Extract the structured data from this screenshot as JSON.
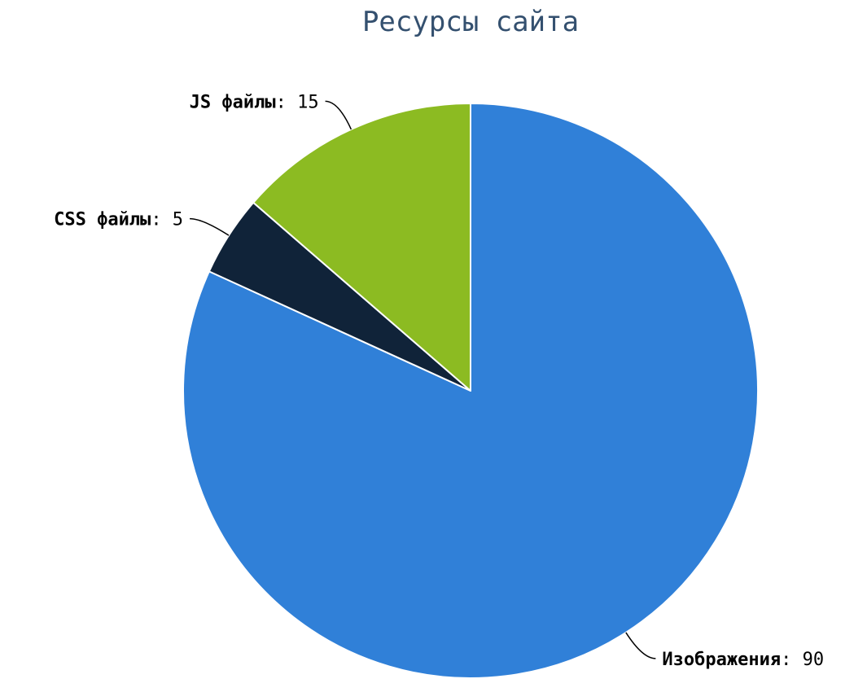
{
  "chart_data": {
    "type": "pie",
    "title": "Ресурсы сайта",
    "slices": [
      {
        "label": "Изображения",
        "value": 90,
        "color": "#3080d8"
      },
      {
        "label": "CSS файлы",
        "value": 5,
        "color": "#102339"
      },
      {
        "label": "JS файлы",
        "value": 15,
        "color": "#8cbb22"
      }
    ],
    "start_angle_deg": 0,
    "direction": "clockwise",
    "legend": "none",
    "data_labels": "outside with leader lines"
  }
}
